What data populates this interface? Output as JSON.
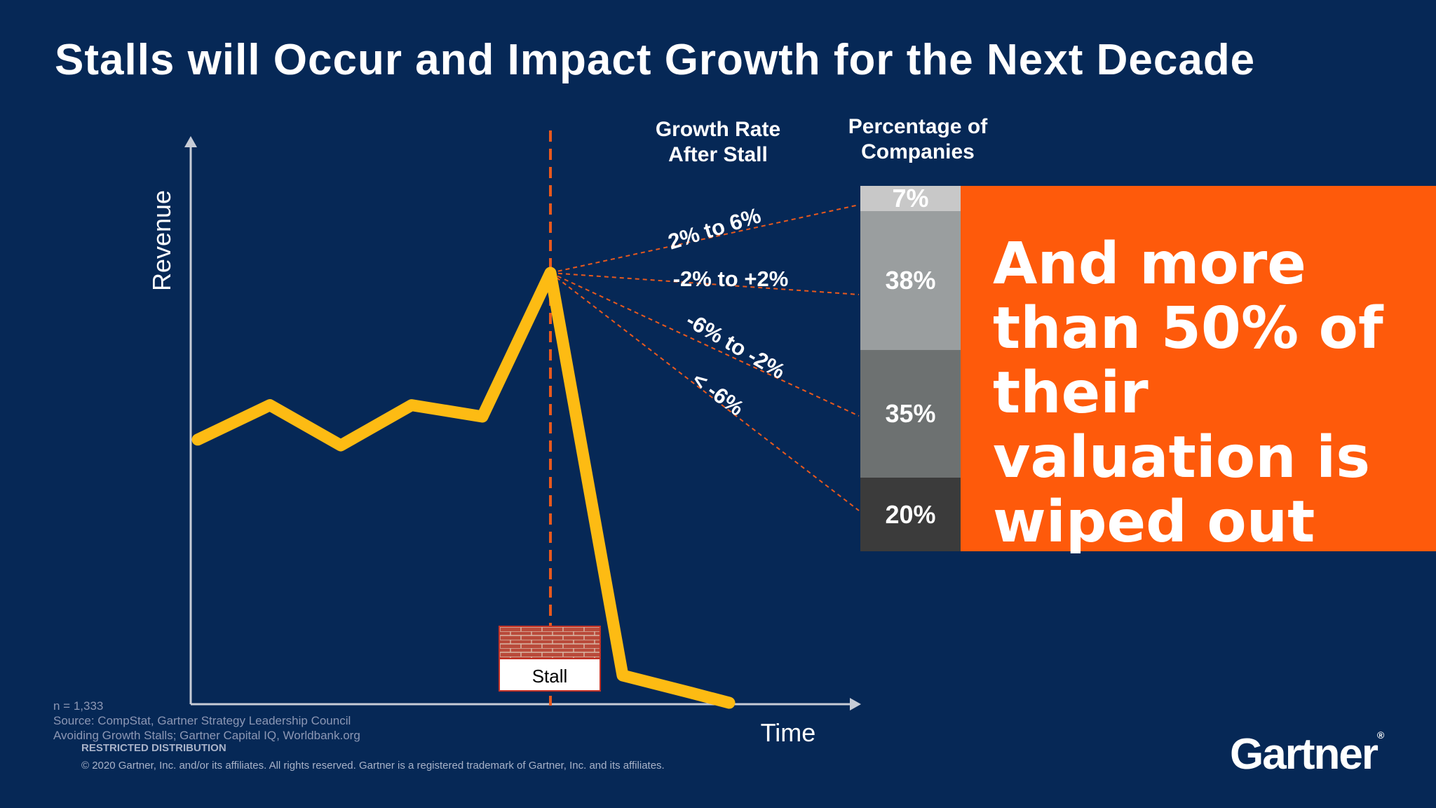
{
  "slide": {
    "title": "Stalls will Occur and Impact Growth for the Next Decade"
  },
  "chart_data": {
    "type": "line",
    "xlabel": "Time",
    "ylabel": "Revenue",
    "marker_label": "Stall",
    "revenue_line": {
      "x": [
        0,
        1,
        2,
        3,
        4,
        5,
        6,
        7,
        8
      ],
      "y": [
        0.46,
        0.52,
        0.45,
        0.52,
        0.5,
        0.75,
        0.05,
        0.02,
        0.0
      ]
    },
    "stall_index": 5,
    "growth_rate_header": "Growth Rate After Stall",
    "percentage_header": "Percentage of Companies",
    "outcomes": [
      {
        "growth_rate": "2% to 6%",
        "percentage": 7,
        "label": "7%",
        "color": "#c8c8c8"
      },
      {
        "growth_rate": "-2% to +2%",
        "percentage": 38,
        "label": "38%",
        "color": "#9a9e9f"
      },
      {
        "growth_rate": "-6% to -2%",
        "percentage": 35,
        "label": "35%",
        "color": "#6d7171"
      },
      {
        "growth_rate": "< -6%",
        "percentage": 20,
        "label": "20%",
        "color": "#3b3b3b"
      }
    ]
  },
  "callout": {
    "text": "And more than 50% of their valuation is wiped out",
    "color": "#fe5a0b"
  },
  "footer": {
    "n": "n = 1,333",
    "source_line1": "Source: CompStat, Gartner Strategy Leadership Council",
    "source_line2": "Avoiding Growth Stalls; Gartner Capital IQ, Worldbank.org",
    "restricted": "RESTRICTED DISTRIBUTION",
    "copyright": "© 2020 Gartner, Inc. and/or its affiliates. All rights reserved. Gartner is a registered trademark of Gartner, Inc. and its affiliates."
  },
  "logo": {
    "text": "Gartner",
    "mark": "®"
  },
  "colors": {
    "background": "#062856",
    "line": "#fdbb13",
    "stall_dash": "#e8591d"
  }
}
